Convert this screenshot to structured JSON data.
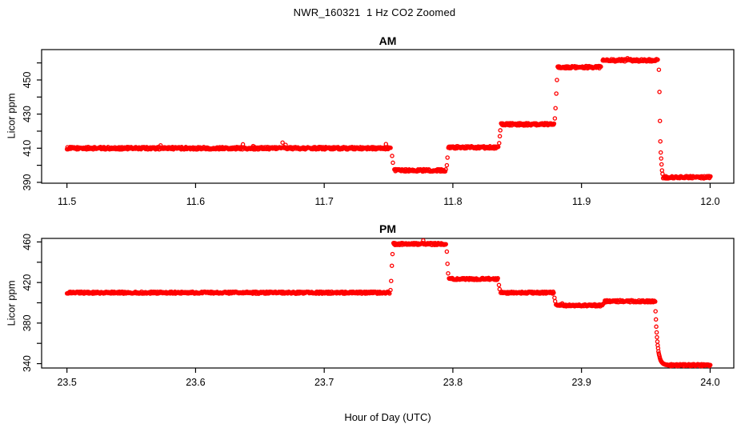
{
  "window": {
    "background": "#FFFFFF",
    "foreground": "#000000"
  },
  "header": {
    "title": "NWR_160321  1 Hz CO2 Zoomed"
  },
  "xlabel": "Hour of Day (UTC)",
  "chart_data": [
    {
      "type": "scatter",
      "title": "AM",
      "ylabel": "Licor ppm",
      "marker": "open-circle",
      "color": "#FF0000",
      "axis_color": "#000000",
      "grid": false,
      "legend": "none",
      "xlim": [
        11.4803,
        12.0184
      ],
      "ylim": [
        389.5,
        467.8
      ],
      "xticks": [
        {
          "value": 11.5,
          "label": "11.5"
        },
        {
          "value": 11.6,
          "label": "11.6"
        },
        {
          "value": 11.7,
          "label": "11.7"
        },
        {
          "value": 11.8,
          "label": "11.8"
        },
        {
          "value": 11.9,
          "label": "11.9"
        },
        {
          "value": 12.0,
          "label": "12.0"
        }
      ],
      "yticks": [
        {
          "value": 390,
          "label": "390"
        },
        {
          "value": 410,
          "label": "410"
        },
        {
          "value": 430,
          "label": "430"
        },
        {
          "value": 450,
          "label": "450"
        }
      ],
      "yticks_minor": [
        400,
        420,
        440,
        460
      ],
      "sample_dt_hr": 0.0004,
      "jitter_ppm": 0.7,
      "segments": [
        {
          "t0": 11.5,
          "t1": 11.752,
          "value": 410.0
        },
        {
          "t0": 11.7545,
          "t1": 11.7948,
          "value": 397.0
        },
        {
          "t0": 11.7965,
          "t1": 11.8355,
          "value": 410.5
        },
        {
          "t0": 11.8375,
          "t1": 11.8788,
          "value": 424.0
        },
        {
          "t0": 11.8815,
          "t1": 11.9155,
          "value": 457.5
        },
        {
          "t0": 11.9165,
          "t1": 11.9595,
          "value": 461.5
        },
        {
          "t0": 11.9635,
          "t1": 12.0005,
          "value": 393.0
        }
      ],
      "transition_points": [
        [
          11.7528,
          405.5
        ],
        [
          11.7534,
          401.5
        ],
        [
          11.7953,
          400.0
        ],
        [
          11.7958,
          404.5
        ],
        [
          11.836,
          413.0
        ],
        [
          11.8365,
          417.0
        ],
        [
          11.8369,
          420.5
        ],
        [
          11.8793,
          427.5
        ],
        [
          11.8798,
          433.5
        ],
        [
          11.8804,
          442.0
        ],
        [
          11.8809,
          450.0
        ],
        [
          11.9602,
          456.0
        ],
        [
          11.9606,
          443.0
        ],
        [
          11.961,
          426.0
        ],
        [
          11.9613,
          414.0
        ],
        [
          11.9616,
          407.5
        ],
        [
          11.9619,
          404.0
        ],
        [
          11.9622,
          400.5
        ],
        [
          11.9626,
          397.0
        ],
        [
          11.963,
          395.0
        ]
      ],
      "decays": []
    },
    {
      "type": "scatter",
      "title": "PM",
      "ylabel": "Licor ppm",
      "marker": "open-circle",
      "color": "#FF0000",
      "axis_color": "#000000",
      "grid": false,
      "legend": "none",
      "xlim": [
        23.4803,
        24.0184
      ],
      "ylim": [
        335.7,
        463.5
      ],
      "xticks": [
        {
          "value": 23.5,
          "label": "23.5"
        },
        {
          "value": 23.6,
          "label": "23.6"
        },
        {
          "value": 23.7,
          "label": "23.7"
        },
        {
          "value": 23.8,
          "label": "23.8"
        },
        {
          "value": 23.9,
          "label": "23.9"
        },
        {
          "value": 24.0,
          "label": "24.0"
        }
      ],
      "yticks": [
        {
          "value": 340,
          "label": "340"
        },
        {
          "value": 380,
          "label": "380"
        },
        {
          "value": 420,
          "label": "420"
        },
        {
          "value": 460,
          "label": "460"
        }
      ],
      "yticks_minor": [
        360,
        400,
        440
      ],
      "sample_dt_hr": 0.0004,
      "jitter_ppm": 1.0,
      "segments": [
        {
          "t0": 23.5,
          "t1": 23.7508,
          "value": 410.0
        },
        {
          "t0": 23.7538,
          "t1": 23.7948,
          "value": 458.0
        },
        {
          "t0": 23.797,
          "t1": 23.8352,
          "value": 423.5
        },
        {
          "t0": 23.8372,
          "t1": 23.8785,
          "value": 410.0
        },
        {
          "t0": 23.8802,
          "t1": 23.9168,
          "value": 397.5
        },
        {
          "t0": 23.9182,
          "t1": 23.957,
          "value": 401.5
        },
        {
          "t0": 23.969,
          "t1": 24.0005,
          "value": 338.5
        }
      ],
      "transition_points": [
        [
          23.7515,
          412.5
        ],
        [
          23.752,
          421.5
        ],
        [
          23.7526,
          436.5
        ],
        [
          23.7531,
          448.0
        ],
        [
          23.7953,
          450.5
        ],
        [
          23.7958,
          438.5
        ],
        [
          23.7963,
          429.0
        ],
        [
          23.8358,
          417.5
        ],
        [
          23.8363,
          413.5
        ],
        [
          23.879,
          405.0
        ],
        [
          23.8795,
          401.5
        ],
        [
          23.9174,
          399.5
        ]
      ],
      "decays": [
        {
          "t0": 23.9573,
          "t1": 23.969,
          "from": 401.5,
          "to": 338.5,
          "k": 600
        }
      ]
    }
  ]
}
